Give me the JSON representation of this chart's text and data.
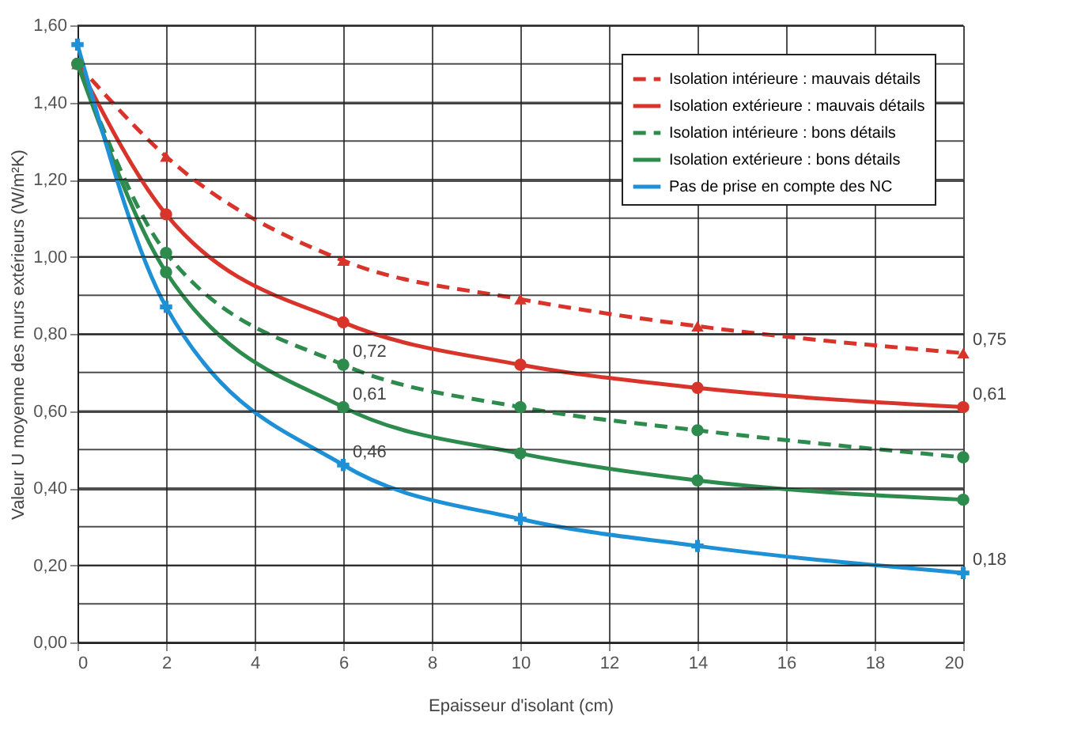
{
  "chart_data": {
    "type": "line",
    "xlabel": "Epaisseur d'isolant (cm)",
    "ylabel": "Valeur U moyenne des murs extérieurs (W/m²K)",
    "x": [
      0,
      2,
      6,
      10,
      14,
      20
    ],
    "series": [
      {
        "name": "Isolation intérieure : mauvais détails",
        "color": "#d9342b",
        "line_style": "dashed",
        "marker": "triangle",
        "values": [
          1.5,
          1.26,
          0.99,
          0.89,
          0.82,
          0.75
        ],
        "value_labels": [
          null,
          null,
          null,
          null,
          null,
          "0,75"
        ]
      },
      {
        "name": "Isolation extérieure : mauvais détails",
        "color": "#d9342b",
        "line_style": "solid",
        "marker": "circle",
        "values": [
          1.5,
          1.11,
          0.83,
          0.72,
          0.66,
          0.61
        ],
        "value_labels": [
          null,
          null,
          null,
          null,
          null,
          "0,61"
        ]
      },
      {
        "name": "Isolation intérieure : bons détails",
        "color": "#2e8b4e",
        "line_style": "dashed",
        "marker": "circle",
        "values": [
          1.5,
          1.01,
          0.72,
          0.61,
          0.55,
          0.48
        ],
        "value_labels": [
          null,
          null,
          "0,72",
          null,
          null,
          null
        ]
      },
      {
        "name": "Isolation extérieure : bons détails",
        "color": "#2e8b4e",
        "line_style": "solid",
        "marker": "circle",
        "values": [
          1.5,
          0.96,
          0.61,
          0.49,
          0.42,
          0.37
        ],
        "value_labels": [
          null,
          null,
          "0,61",
          null,
          null,
          null
        ]
      },
      {
        "name": "Pas de prise en compte des NC",
        "color": "#1e90d6",
        "line_style": "solid",
        "marker": "cross",
        "values": [
          1.55,
          0.87,
          0.46,
          0.32,
          0.25,
          0.18
        ],
        "value_labels": [
          null,
          null,
          "0,46",
          null,
          null,
          "0,18"
        ]
      }
    ],
    "xlim": [
      0,
      20
    ],
    "xticks": [
      0,
      2,
      4,
      6,
      8,
      10,
      12,
      14,
      16,
      18,
      20
    ],
    "ylim": [
      0,
      1.6
    ],
    "yticks": [
      {
        "value": 0,
        "label": "0,00"
      },
      {
        "value": 0.1,
        "label": null
      },
      {
        "value": 0.2,
        "label": "0,20"
      },
      {
        "value": 0.3,
        "label": null
      },
      {
        "value": 0.4,
        "label": "0,40"
      },
      {
        "value": 0.5,
        "label": null
      },
      {
        "value": 0.6,
        "label": "0,60"
      },
      {
        "value": 0.7,
        "label": null
      },
      {
        "value": 0.8,
        "label": "0,80"
      },
      {
        "value": 0.9,
        "label": null
      },
      {
        "value": 1.0,
        "label": "1,00"
      },
      {
        "value": 1.1,
        "label": null
      },
      {
        "value": 1.2,
        "label": "1,20"
      },
      {
        "value": 1.3,
        "label": null
      },
      {
        "value": 1.4,
        "label": "1,40"
      },
      {
        "value": 1.5,
        "label": null
      },
      {
        "value": 1.6,
        "label": "1,60"
      }
    ],
    "grid": true,
    "legend": "top right"
  }
}
